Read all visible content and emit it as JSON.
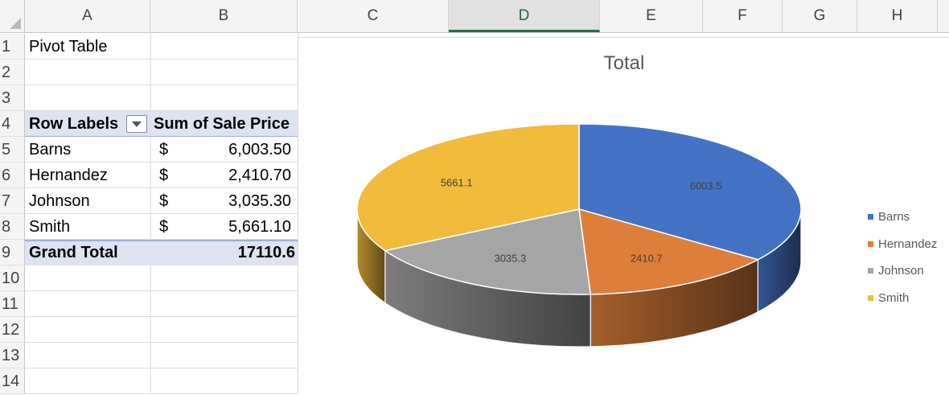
{
  "columns": [
    "A",
    "B",
    "C",
    "D",
    "E",
    "F",
    "G",
    "H"
  ],
  "active_column": "D",
  "rows": [
    "1",
    "2",
    "3",
    "4",
    "5",
    "6",
    "7",
    "8",
    "9",
    "10",
    "11",
    "12",
    "13",
    "14"
  ],
  "cells": {
    "a1": "Pivot Table",
    "pivot_header_label": "Row Labels",
    "pivot_header_value": "Sum of Sale Price",
    "pivot_rows": [
      {
        "label": "Barns",
        "currency": "$",
        "value": "6,003.50"
      },
      {
        "label": "Hernandez",
        "currency": "$",
        "value": "2,410.70"
      },
      {
        "label": "Johnson",
        "currency": "$",
        "value": "3,035.30"
      },
      {
        "label": "Smith",
        "currency": "$",
        "value": "5,661.10"
      }
    ],
    "grand_total_label": "Grand Total",
    "grand_total_value": "17110.6"
  },
  "colors": {
    "Barns": "#4472c4",
    "Hernandez": "#dd7e3b",
    "Johnson": "#a5a5a5",
    "Smith": "#f1bb3c"
  },
  "chart_data": {
    "type": "pie",
    "style": "3d",
    "title": "Total",
    "categories": [
      "Barns",
      "Hernandez",
      "Johnson",
      "Smith"
    ],
    "values": [
      6003.5,
      2410.7,
      3035.3,
      5661.1
    ],
    "data_labels": [
      "6003.5",
      "2410.7",
      "3035.3",
      "5661.1"
    ],
    "legend_position": "right"
  }
}
